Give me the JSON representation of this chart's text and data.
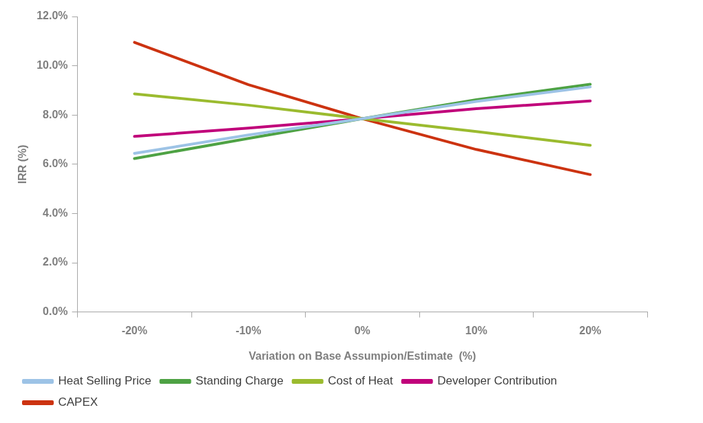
{
  "chart_data": {
    "type": "line",
    "xlabel": "Variation on Base Assumpion/Estimate  (%)",
    "ylabel": "IRR (%)",
    "categories": [
      "-20%",
      "-10%",
      "0%",
      "10%",
      "20%"
    ],
    "ylim": [
      0,
      12
    ],
    "yticks": [
      {
        "value": 0,
        "label": "0.0%"
      },
      {
        "value": 2,
        "label": "2.0%"
      },
      {
        "value": 4,
        "label": "4.0%"
      },
      {
        "value": 6,
        "label": "6.0%"
      },
      {
        "value": 8,
        "label": "8.0%"
      },
      {
        "value": 10,
        "label": "10.0%"
      },
      {
        "value": 12,
        "label": "12.0%"
      }
    ],
    "grid": false,
    "legend": "bottom",
    "marker": "none",
    "line_style": "solid",
    "series": [
      {
        "name": "Heat Selling Price",
        "color": "#9dc3e6",
        "values": [
          6.44,
          7.19,
          7.85,
          8.55,
          9.14
        ]
      },
      {
        "name": "Standing Charge",
        "color": "#4ea244",
        "values": [
          6.23,
          7.05,
          7.85,
          8.62,
          9.25
        ]
      },
      {
        "name": "Cost of Heat",
        "color": "#9bbb2f",
        "values": [
          8.86,
          8.4,
          7.85,
          7.33,
          6.77
        ]
      },
      {
        "name": "Developer Contribution",
        "color": "#c0007a",
        "values": [
          7.13,
          7.47,
          7.85,
          8.26,
          8.57
        ]
      },
      {
        "name": "CAPEX",
        "color": "#cc3311",
        "values": [
          10.95,
          9.23,
          7.85,
          6.6,
          5.58
        ]
      }
    ]
  }
}
